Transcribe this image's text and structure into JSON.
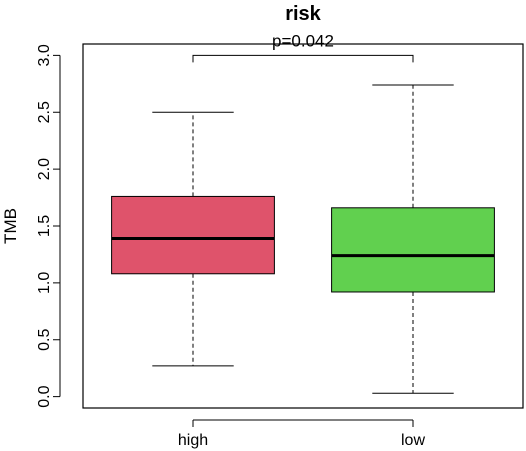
{
  "chart_data": {
    "type": "boxplot",
    "title": "risk",
    "xlabel": "",
    "ylabel": "TMB",
    "ylim": [
      -0.1,
      3.1
    ],
    "yticks": [
      "0.0",
      "0.5",
      "1.0",
      "1.5",
      "2.0",
      "2.5",
      "3.0"
    ],
    "categories": [
      "high",
      "low"
    ],
    "boxes": [
      {
        "category": "high",
        "whisker_low": 0.27,
        "q1": 1.08,
        "median": 1.39,
        "q3": 1.76,
        "whisker_high": 2.5,
        "color": "#DF536B"
      },
      {
        "category": "low",
        "whisker_low": 0.03,
        "q1": 0.92,
        "median": 1.24,
        "q3": 1.66,
        "whisker_high": 2.74,
        "color": "#61D04F"
      }
    ],
    "annotation": {
      "text": "p=0.042",
      "y": 3.0
    }
  }
}
